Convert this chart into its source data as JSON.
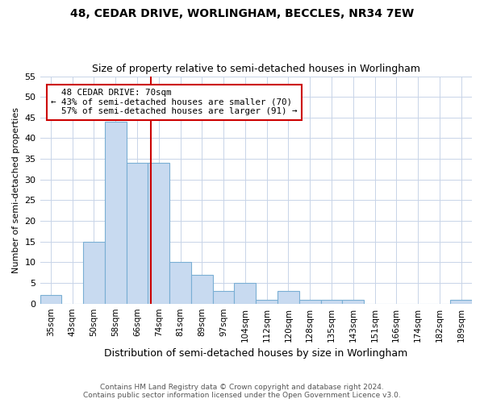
{
  "title": "48, CEDAR DRIVE, WORLINGHAM, BECCLES, NR34 7EW",
  "subtitle": "Size of property relative to semi-detached houses in Worlingham",
  "xlabel": "Distribution of semi-detached houses by size in Worlingham",
  "ylabel": "Number of semi-detached properties",
  "footer_line1": "Contains HM Land Registry data © Crown copyright and database right 2024.",
  "footer_line2": "Contains public sector information licensed under the Open Government Licence v3.0.",
  "categories": [
    "35sqm",
    "43sqm",
    "50sqm",
    "58sqm",
    "66sqm",
    "74sqm",
    "81sqm",
    "89sqm",
    "97sqm",
    "104sqm",
    "112sqm",
    "120sqm",
    "128sqm",
    "135sqm",
    "143sqm",
    "151sqm",
    "166sqm",
    "174sqm",
    "182sqm",
    "189sqm"
  ],
  "values": [
    2,
    0,
    15,
    44,
    34,
    34,
    10,
    7,
    3,
    5,
    1,
    3,
    1,
    1,
    1,
    0,
    0,
    0,
    0,
    1
  ],
  "bar_color": "#c8daf0",
  "bar_edge_color": "#7aafd4",
  "ylim": [
    0,
    55
  ],
  "yticks": [
    0,
    5,
    10,
    15,
    20,
    25,
    30,
    35,
    40,
    45,
    50,
    55
  ],
  "property_label": "48 CEDAR DRIVE: 70sqm",
  "pct_smaller": 43,
  "pct_larger": 57,
  "n_smaller": 70,
  "n_larger": 91,
  "vline_x_idx": 4.65,
  "annotation_box_color": "#ffffff",
  "annotation_box_edge": "#cc0000",
  "vline_color": "#cc0000",
  "grid_color": "#c8d4e8",
  "background_color": "#ffffff",
  "title_fontsize": 10,
  "subtitle_fontsize": 9
}
